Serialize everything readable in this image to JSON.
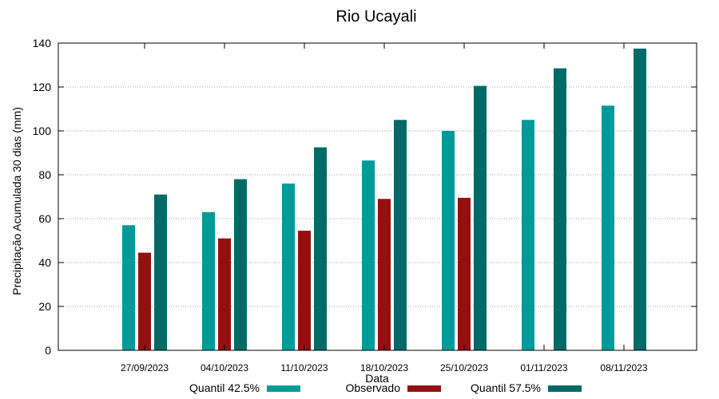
{
  "chart_data": {
    "type": "bar",
    "title": "Rio Ucayali",
    "xlabel": "Data",
    "ylabel": "Precipitação Acumulada 30 dias (mm)",
    "ylim": [
      0,
      140
    ],
    "yticks": [
      0,
      20,
      40,
      60,
      80,
      100,
      120,
      140
    ],
    "grid": true,
    "legend_position": "bottom",
    "categories": [
      "27/09/2023",
      "04/10/2023",
      "11/10/2023",
      "18/10/2023",
      "25/10/2023",
      "01/11/2023",
      "08/11/2023"
    ],
    "series": [
      {
        "name": "Quantil 42.5%",
        "color": "#009a99",
        "values": [
          57,
          63,
          76,
          86.5,
          100,
          105,
          111.5
        ]
      },
      {
        "name": "Observado",
        "color": "#941010",
        "values": [
          44.5,
          51,
          54.5,
          69,
          69.5,
          null,
          null
        ]
      },
      {
        "name": "Quantil 57.5%",
        "color": "#006a68",
        "values": [
          71,
          78,
          92.5,
          105,
          120.5,
          128.5,
          137.5
        ]
      }
    ]
  }
}
